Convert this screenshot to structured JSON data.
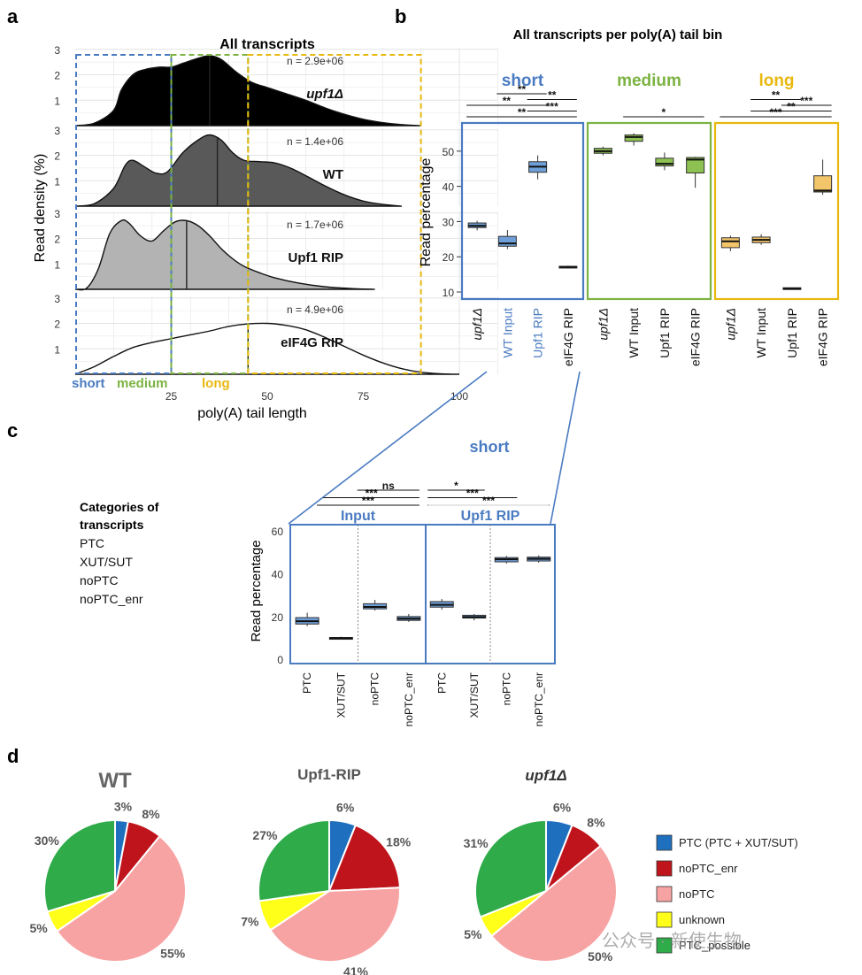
{
  "panel_letters": {
    "a": "a",
    "b": "b",
    "c": "c",
    "d": "d"
  },
  "palette": {
    "short": "#4a7bc1",
    "medium": "#7cb342",
    "long": "#e8b80f",
    "box_short": "#6f9fd8",
    "box_medium": "#8dc152",
    "box_long": "#f3c56a",
    "ptc": "#1f6fbf",
    "noptc_enr": "#c0141c",
    "noptc": "#f8a3a3",
    "unknown": "#ffff1a",
    "ptc_possible": "#2fab49"
  },
  "panel_a": {
    "title": "All transcripts",
    "ylabel": "Read density (%)",
    "xlabel": "poly(A) tail length",
    "x_ticks": [
      "25",
      "50",
      "75",
      "100"
    ],
    "x_tick_values": [
      25,
      50,
      75,
      100
    ],
    "y_ticks": [
      "1",
      "2",
      "3"
    ],
    "bins": [
      {
        "label": "short",
        "from": 0,
        "to": 25
      },
      {
        "label": "medium",
        "from": 25,
        "to": 45
      },
      {
        "label": "long",
        "from": 45,
        "to": 90
      }
    ],
    "rows": [
      {
        "name": "upf1Δ",
        "n": "n = 2.9e+06",
        "fill": "#000000",
        "median": 35,
        "density": [
          [
            0,
            0
          ],
          [
            5,
            0.1
          ],
          [
            10,
            0.6
          ],
          [
            12,
            1.4
          ],
          [
            15,
            2.0
          ],
          [
            18,
            2.2
          ],
          [
            22,
            2.3
          ],
          [
            25,
            2.3
          ],
          [
            28,
            2.45
          ],
          [
            32,
            2.65
          ],
          [
            35,
            2.75
          ],
          [
            38,
            2.6
          ],
          [
            42,
            2.1
          ],
          [
            46,
            1.7
          ],
          [
            50,
            1.5
          ],
          [
            55,
            1.25
          ],
          [
            60,
            1.0
          ],
          [
            65,
            0.7
          ],
          [
            70,
            0.45
          ],
          [
            75,
            0.25
          ],
          [
            80,
            0.12
          ],
          [
            85,
            0.04
          ],
          [
            90,
            0
          ]
        ]
      },
      {
        "name": "WT",
        "n": "n = 1.4e+06",
        "fill": "#595959",
        "median": 37,
        "density": [
          [
            0,
            0
          ],
          [
            5,
            0.1
          ],
          [
            10,
            0.7
          ],
          [
            13,
            1.6
          ],
          [
            15,
            1.8
          ],
          [
            18,
            1.55
          ],
          [
            21,
            1.3
          ],
          [
            24,
            1.35
          ],
          [
            28,
            2.1
          ],
          [
            32,
            2.6
          ],
          [
            35,
            2.8
          ],
          [
            38,
            2.6
          ],
          [
            41,
            2.1
          ],
          [
            44,
            1.8
          ],
          [
            48,
            1.75
          ],
          [
            52,
            1.7
          ],
          [
            56,
            1.5
          ],
          [
            60,
            1.2
          ],
          [
            65,
            0.8
          ],
          [
            70,
            0.45
          ],
          [
            75,
            0.2
          ],
          [
            80,
            0.07
          ],
          [
            85,
            0
          ]
        ]
      },
      {
        "name": "Upf1 RIP",
        "n": "n = 1.7e+06",
        "fill": "#b3b3b3",
        "median": 29,
        "density": [
          [
            0,
            0
          ],
          [
            3,
            0.05
          ],
          [
            6,
            0.8
          ],
          [
            9,
            2.2
          ],
          [
            12,
            2.7
          ],
          [
            14,
            2.6
          ],
          [
            17,
            2.1
          ],
          [
            20,
            1.9
          ],
          [
            23,
            2.3
          ],
          [
            26,
            2.65
          ],
          [
            29,
            2.7
          ],
          [
            32,
            2.5
          ],
          [
            35,
            2.1
          ],
          [
            38,
            1.6
          ],
          [
            41,
            1.2
          ],
          [
            44,
            0.9
          ],
          [
            48,
            0.65
          ],
          [
            52,
            0.45
          ],
          [
            58,
            0.25
          ],
          [
            65,
            0.1
          ],
          [
            72,
            0.03
          ],
          [
            78,
            0
          ]
        ]
      },
      {
        "name": "eIF4G RIP",
        "n": "n = 4.9e+06",
        "fill": "#ffffff",
        "median": 45,
        "density": [
          [
            0,
            0
          ],
          [
            5,
            0.3
          ],
          [
            10,
            0.7
          ],
          [
            15,
            1.05
          ],
          [
            20,
            1.25
          ],
          [
            25,
            1.4
          ],
          [
            30,
            1.55
          ],
          [
            35,
            1.7
          ],
          [
            40,
            1.88
          ],
          [
            45,
            1.98
          ],
          [
            50,
            2.0
          ],
          [
            55,
            1.92
          ],
          [
            60,
            1.75
          ],
          [
            65,
            1.45
          ],
          [
            70,
            1.1
          ],
          [
            75,
            0.75
          ],
          [
            80,
            0.45
          ],
          [
            85,
            0.22
          ],
          [
            90,
            0.08
          ],
          [
            95,
            0.02
          ],
          [
            100,
            0
          ]
        ]
      }
    ]
  },
  "panel_b": {
    "title": "All transcripts per poly(A) tail bin",
    "ylabel": "Read percentage",
    "ylim": [
      8,
      58
    ],
    "y_ticks": [
      10,
      20,
      30,
      40,
      50
    ],
    "groups": [
      {
        "name": "short",
        "color": "short",
        "box": "box_short",
        "boxes": [
          {
            "label": "upf1Δ",
            "min": 27.5,
            "q1": 28.3,
            "median": 28.8,
            "q3": 29.6,
            "max": 30.2
          },
          {
            "label": "WT Input",
            "min": 22.2,
            "q1": 23.0,
            "median": 23.8,
            "q3": 25.8,
            "max": 27.6
          },
          {
            "label": "Upf1 RIP",
            "min": 42.0,
            "q1": 44.0,
            "median": 45.6,
            "q3": 47.0,
            "max": 48.8
          },
          {
            "label": "eIF4G RIP",
            "min": 16.8,
            "q1": 17.0,
            "median": 17.1,
            "q3": 17.3,
            "max": 17.5
          }
        ],
        "sig": [
          [
            "**",
            1,
            2
          ],
          [
            "**",
            2,
            3
          ],
          [
            "**",
            0,
            2
          ],
          [
            "***",
            2,
            3
          ],
          [
            "**",
            0,
            3
          ]
        ]
      },
      {
        "name": "medium",
        "color": "medium",
        "box": "box_medium",
        "boxes": [
          {
            "label": "upf1Δ",
            "min": 48.8,
            "q1": 49.4,
            "median": 50.0,
            "q3": 50.8,
            "max": 51.3
          },
          {
            "label": "WT Input",
            "min": 51.6,
            "q1": 52.8,
            "median": 54.0,
            "q3": 54.6,
            "max": 55.1
          },
          {
            "label": "Upf1 RIP",
            "min": 44.6,
            "q1": 45.8,
            "median": 46.4,
            "q3": 48.0,
            "max": 49.6
          },
          {
            "label": "eIF4G RIP",
            "min": 39.6,
            "q1": 43.8,
            "median": 47.6,
            "q3": 48.2,
            "max": 48.4
          }
        ],
        "sig": [
          [
            "*",
            1,
            3
          ]
        ]
      },
      {
        "name": "long",
        "color": "long",
        "box": "box_long",
        "boxes": [
          {
            "label": "upf1Δ",
            "min": 21.6,
            "q1": 22.6,
            "median": 24.4,
            "q3": 25.4,
            "max": 26.0
          },
          {
            "label": "WT Input",
            "min": 23.4,
            "q1": 24.0,
            "median": 24.8,
            "q3": 25.6,
            "max": 26.4
          },
          {
            "label": "Upf1 RIP",
            "min": 10.8,
            "q1": 10.9,
            "median": 11.0,
            "q3": 11.2,
            "max": 11.3
          },
          {
            "label": "eIF4G RIP",
            "min": 37.6,
            "q1": 38.4,
            "median": 38.8,
            "q3": 43.0,
            "max": 47.6
          }
        ],
        "sig": [
          [
            "**",
            1,
            2
          ],
          [
            "***",
            2,
            3
          ],
          [
            "**",
            1,
            3
          ],
          [
            "***",
            0,
            3
          ]
        ]
      }
    ]
  },
  "panel_c": {
    "title": "short",
    "ylabel": "Read percentage",
    "ylim": [
      -2,
      63
    ],
    "y_ticks": [
      0,
      20,
      40,
      60
    ],
    "legend_title": "Categories of transcripts",
    "categories": [
      "PTC",
      "XUT/SUT",
      "noPTC",
      "noPTC_enr"
    ],
    "subgroups": [
      {
        "name": "Input",
        "boxes": [
          {
            "label": "PTC",
            "min": 15.5,
            "q1": 16.5,
            "median": 17.8,
            "q3": 19.5,
            "max": 21.8
          },
          {
            "label": "XUT/SUT",
            "min": 9.3,
            "q1": 9.6,
            "median": 9.9,
            "q3": 10.2,
            "max": 10.6
          },
          {
            "label": "noPTC",
            "min": 22.8,
            "q1": 23.6,
            "median": 24.5,
            "q3": 26.0,
            "max": 27.8
          },
          {
            "label": "noPTC_enr",
            "min": 17.5,
            "q1": 18.2,
            "median": 19.0,
            "q3": 20.0,
            "max": 21.2
          }
        ],
        "sig": [
          [
            "ns",
            2,
            3
          ],
          [
            "***",
            1,
            3
          ],
          [
            "***",
            0,
            3
          ]
        ]
      },
      {
        "name": "Upf1 RIP",
        "boxes": [
          {
            "label": "PTC",
            "min": 23.2,
            "q1": 24.4,
            "median": 25.5,
            "q3": 27.0,
            "max": 28.2
          },
          {
            "label": "XUT/SUT",
            "min": 18.2,
            "q1": 19.3,
            "median": 19.8,
            "q3": 20.6,
            "max": 21.2
          },
          {
            "label": "noPTC",
            "min": 44.8,
            "q1": 45.6,
            "median": 46.8,
            "q3": 47.6,
            "max": 48.4
          },
          {
            "label": "noPTC_enr",
            "min": 45.2,
            "q1": 46.0,
            "median": 47.0,
            "q3": 47.8,
            "max": 48.6
          }
        ],
        "sig": [
          [
            "*",
            0,
            1
          ],
          [
            "***",
            0,
            2
          ],
          [
            "***",
            0,
            3
          ]
        ]
      }
    ]
  },
  "panel_d": {
    "pies": [
      {
        "title": "WT",
        "values": [
          3,
          8,
          55,
          5,
          30
        ],
        "labels": [
          "3%",
          "8%",
          "55%",
          "5%",
          "30%"
        ]
      },
      {
        "title": "Upf1-RIP",
        "values": [
          6,
          18,
          41,
          7,
          27
        ],
        "labels": [
          "6%",
          "18%",
          "41%",
          "7%",
          "27%"
        ]
      },
      {
        "title": "upf1Δ",
        "values": [
          6,
          8,
          50,
          5,
          31
        ],
        "labels": [
          "6%",
          "8%",
          "50%",
          "5%",
          "31%"
        ]
      }
    ],
    "legend": [
      {
        "label": "PTC (PTC + XUT/SUT)",
        "color": "ptc"
      },
      {
        "label": "noPTC_enr",
        "color": "noptc_enr"
      },
      {
        "label": "noPTC",
        "color": "noptc"
      },
      {
        "label": "unknown",
        "color": "unknown"
      },
      {
        "label": "PTC_possible",
        "color": "ptc_possible"
      }
    ]
  },
  "watermark": "公众号 · 新使生物",
  "chart_data": [
    {
      "type": "area",
      "title": "All transcripts",
      "xlabel": "poly(A) tail length",
      "ylabel": "Read density (%)",
      "series": [
        {
          "name": "upf1Δ",
          "n": "n = 2.9e+06"
        },
        {
          "name": "WT",
          "n": "n = 1.4e+06"
        },
        {
          "name": "Upf1 RIP",
          "n": "n = 1.7e+06"
        },
        {
          "name": "eIF4G RIP",
          "n": "n = 4.9e+06"
        }
      ]
    },
    {
      "type": "box",
      "title": "All transcripts per poly(A) tail bin",
      "ylabel": "Read percentage",
      "ylim": [
        8,
        58
      ],
      "facets": [
        "short",
        "medium",
        "long"
      ],
      "categories": [
        "upf1Δ",
        "WT Input",
        "Upf1 RIP",
        "eIF4G RIP"
      ],
      "medians": {
        "short": [
          28.8,
          23.8,
          45.6,
          17.1
        ],
        "medium": [
          50.0,
          54.0,
          46.4,
          47.6
        ],
        "long": [
          24.4,
          24.8,
          11.0,
          38.8
        ]
      }
    },
    {
      "type": "box",
      "title": "short",
      "ylabel": "Read percentage",
      "ylim": [
        -2,
        63
      ],
      "facets": [
        "Input",
        "Upf1 RIP"
      ],
      "categories": [
        "PTC",
        "XUT/SUT",
        "noPTC",
        "noPTC_enr"
      ],
      "medians": {
        "Input": [
          17.8,
          9.9,
          24.5,
          19.0
        ],
        "Upf1 RIP": [
          25.5,
          19.8,
          46.8,
          47.0
        ]
      }
    },
    {
      "type": "pie",
      "categories": [
        "PTC (PTC + XUT/SUT)",
        "noPTC_enr",
        "noPTC",
        "unknown",
        "PTC_possible"
      ],
      "series": [
        {
          "name": "WT",
          "values": [
            3,
            8,
            55,
            5,
            30
          ]
        },
        {
          "name": "Upf1-RIP",
          "values": [
            6,
            18,
            41,
            7,
            27
          ]
        },
        {
          "name": "upf1Δ",
          "values": [
            6,
            8,
            50,
            5,
            31
          ]
        }
      ]
    }
  ]
}
